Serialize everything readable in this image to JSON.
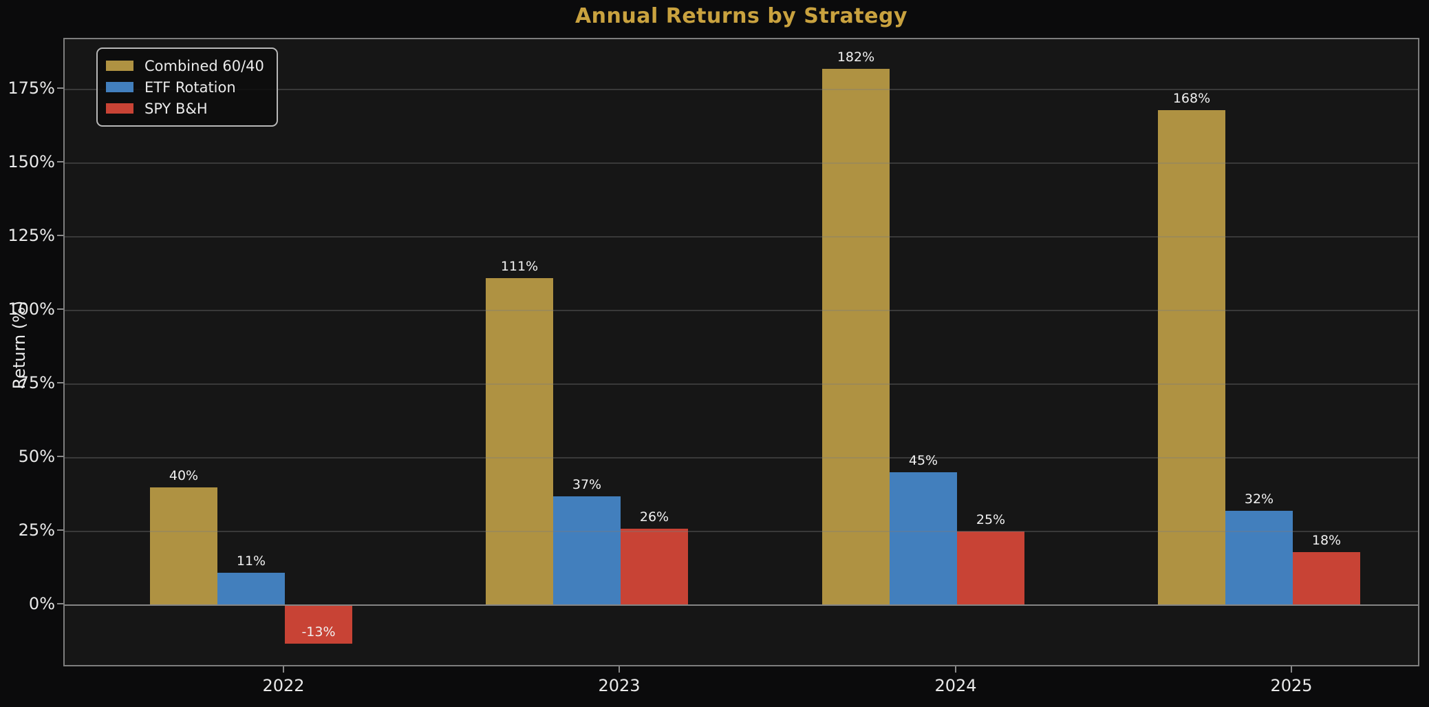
{
  "title": "Annual Returns by Strategy",
  "colors": {
    "background": "#0b0b0c",
    "plot_background": "#161616",
    "title": "#c9a23f",
    "spine": "#7e7e7e",
    "tick_mark": "#8a8a8a",
    "tick_label": "#e9e9e9",
    "axis_label": "#ededed",
    "bar_label": "#f1f1f1",
    "grid": "rgba(122,122,122,0.35)",
    "zero_line": "#858585",
    "legend_border": "#b8b8b8",
    "legend_background": "rgba(12,12,12,0.85)",
    "legend_text": "#eaeaea",
    "series_gold": "#af9242",
    "series_blue": "#427fbd",
    "series_red": "#c84335"
  },
  "chart_data": {
    "type": "bar",
    "title": "Annual Returns by Strategy",
    "xlabel": "",
    "ylabel": "Return (%)",
    "categories": [
      "2022",
      "2023",
      "2024",
      "2025"
    ],
    "series": [
      {
        "name": "Combined 60/40",
        "color_key": "series_gold",
        "values": [
          40,
          111,
          182,
          168
        ],
        "labels": [
          "40%",
          "111%",
          "182%",
          "168%"
        ]
      },
      {
        "name": "ETF Rotation",
        "color_key": "series_blue",
        "values": [
          11,
          37,
          45,
          32
        ],
        "labels": [
          "11%",
          "37%",
          "45%",
          "32%"
        ]
      },
      {
        "name": "SPY B&H",
        "color_key": "series_red",
        "values": [
          -13,
          26,
          25,
          18
        ],
        "labels": [
          "-13%",
          "26%",
          "25%",
          "18%"
        ]
      }
    ],
    "ylim": [
      -21.5,
      192
    ],
    "yticks": [
      0,
      25,
      50,
      75,
      100,
      125,
      150,
      175
    ],
    "ytick_labels": [
      "0%",
      "25%",
      "50%",
      "75%",
      "100%",
      "125%",
      "150%",
      "175%"
    ],
    "grid": true,
    "legend_position": "upper left"
  }
}
